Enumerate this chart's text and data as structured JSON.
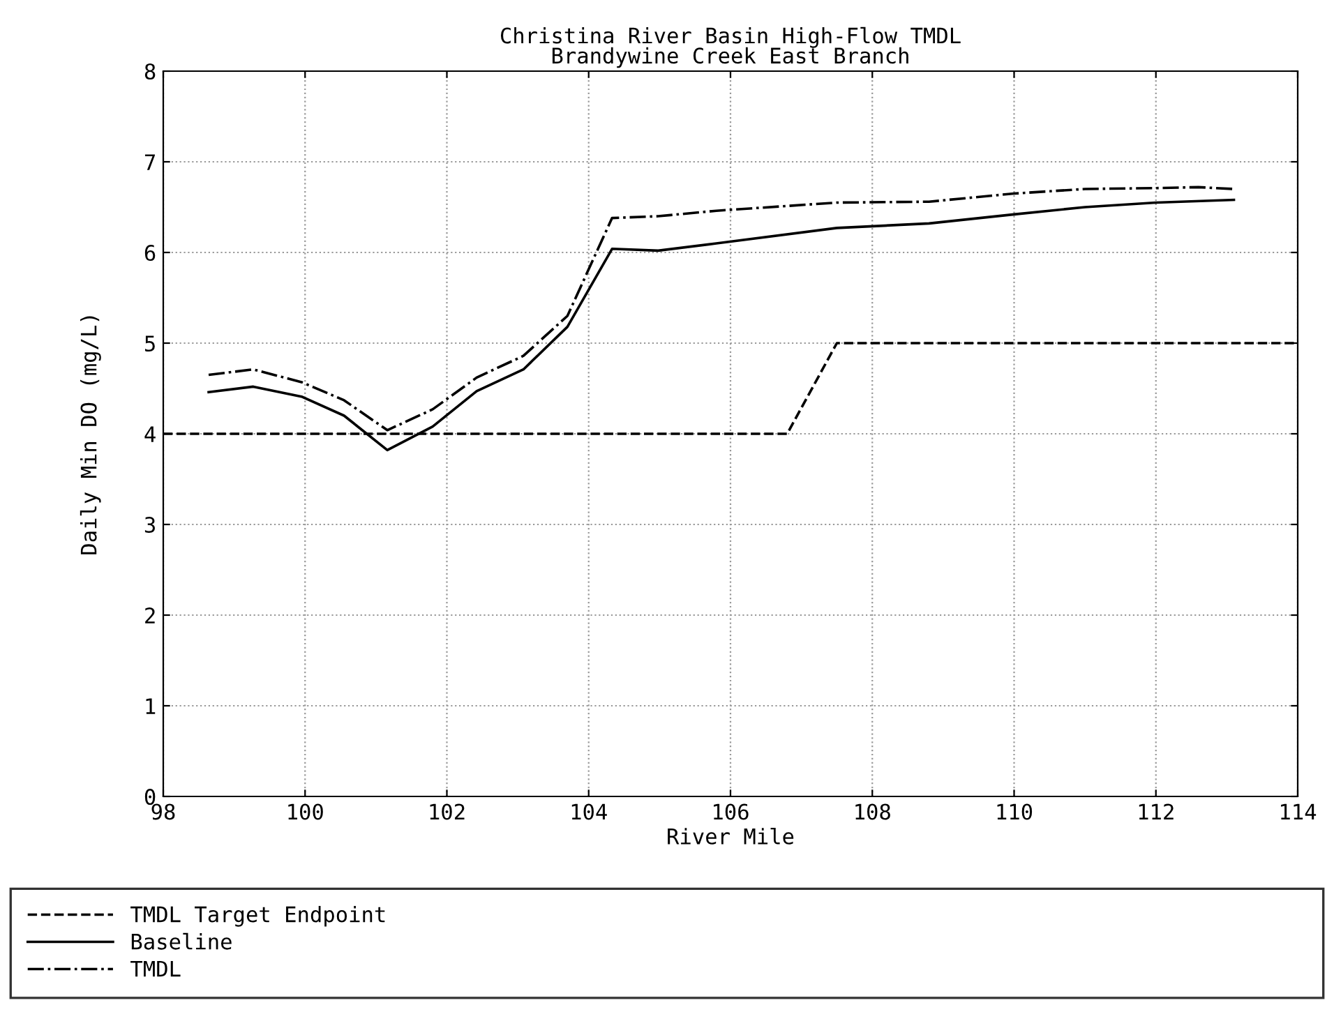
{
  "chart_data": {
    "type": "line",
    "title": "Christina River Basin High-Flow TMDL\nBrandywine Creek East Branch",
    "xlabel": "River Mile",
    "ylabel": "Daily Min DO (mg/L)",
    "xlim": [
      98,
      114
    ],
    "xticks": [
      98,
      100,
      102,
      104,
      106,
      108,
      110,
      112,
      114
    ],
    "ylim": [
      0,
      8
    ],
    "yticks": [
      0,
      1,
      2,
      3,
      4,
      5,
      6,
      7,
      8
    ],
    "grid": true,
    "legend": "bottom",
    "marker": "none",
    "series": [
      {
        "name": "TMDL Target Endpoint",
        "color": "#000000",
        "line_style": "dashed",
        "x": [
          98,
          106.8,
          107.5,
          114
        ],
        "values": [
          4,
          4,
          5,
          5
        ]
      },
      {
        "name": "Baseline",
        "color": "#000000",
        "line_style": "solid",
        "x": [
          98.64,
          99.27,
          99.95,
          100.55,
          101.16,
          101.8,
          102.42,
          103.08,
          103.7,
          104.33,
          104.98,
          105.8,
          107.5,
          108.8,
          110,
          111,
          112,
          113.1
        ],
        "values": [
          4.46,
          4.52,
          4.41,
          4.2,
          3.82,
          4.08,
          4.47,
          4.71,
          5.18,
          6.04,
          6.02,
          6.1,
          6.27,
          6.32,
          6.42,
          6.5,
          6.55,
          6.58
        ]
      },
      {
        "name": "TMDL",
        "color": "#000000",
        "line_style": "dashdot",
        "x": [
          98.64,
          99.27,
          99.95,
          100.55,
          101.16,
          101.8,
          102.42,
          103.08,
          103.7,
          104.33,
          104.98,
          105.8,
          107.5,
          108.8,
          110,
          111,
          112,
          112.6,
          113.1
        ],
        "values": [
          4.65,
          4.71,
          4.57,
          4.37,
          4.04,
          4.27,
          4.62,
          4.86,
          5.3,
          6.38,
          6.4,
          6.46,
          6.55,
          6.56,
          6.65,
          6.7,
          6.71,
          6.72,
          6.7
        ]
      }
    ]
  }
}
